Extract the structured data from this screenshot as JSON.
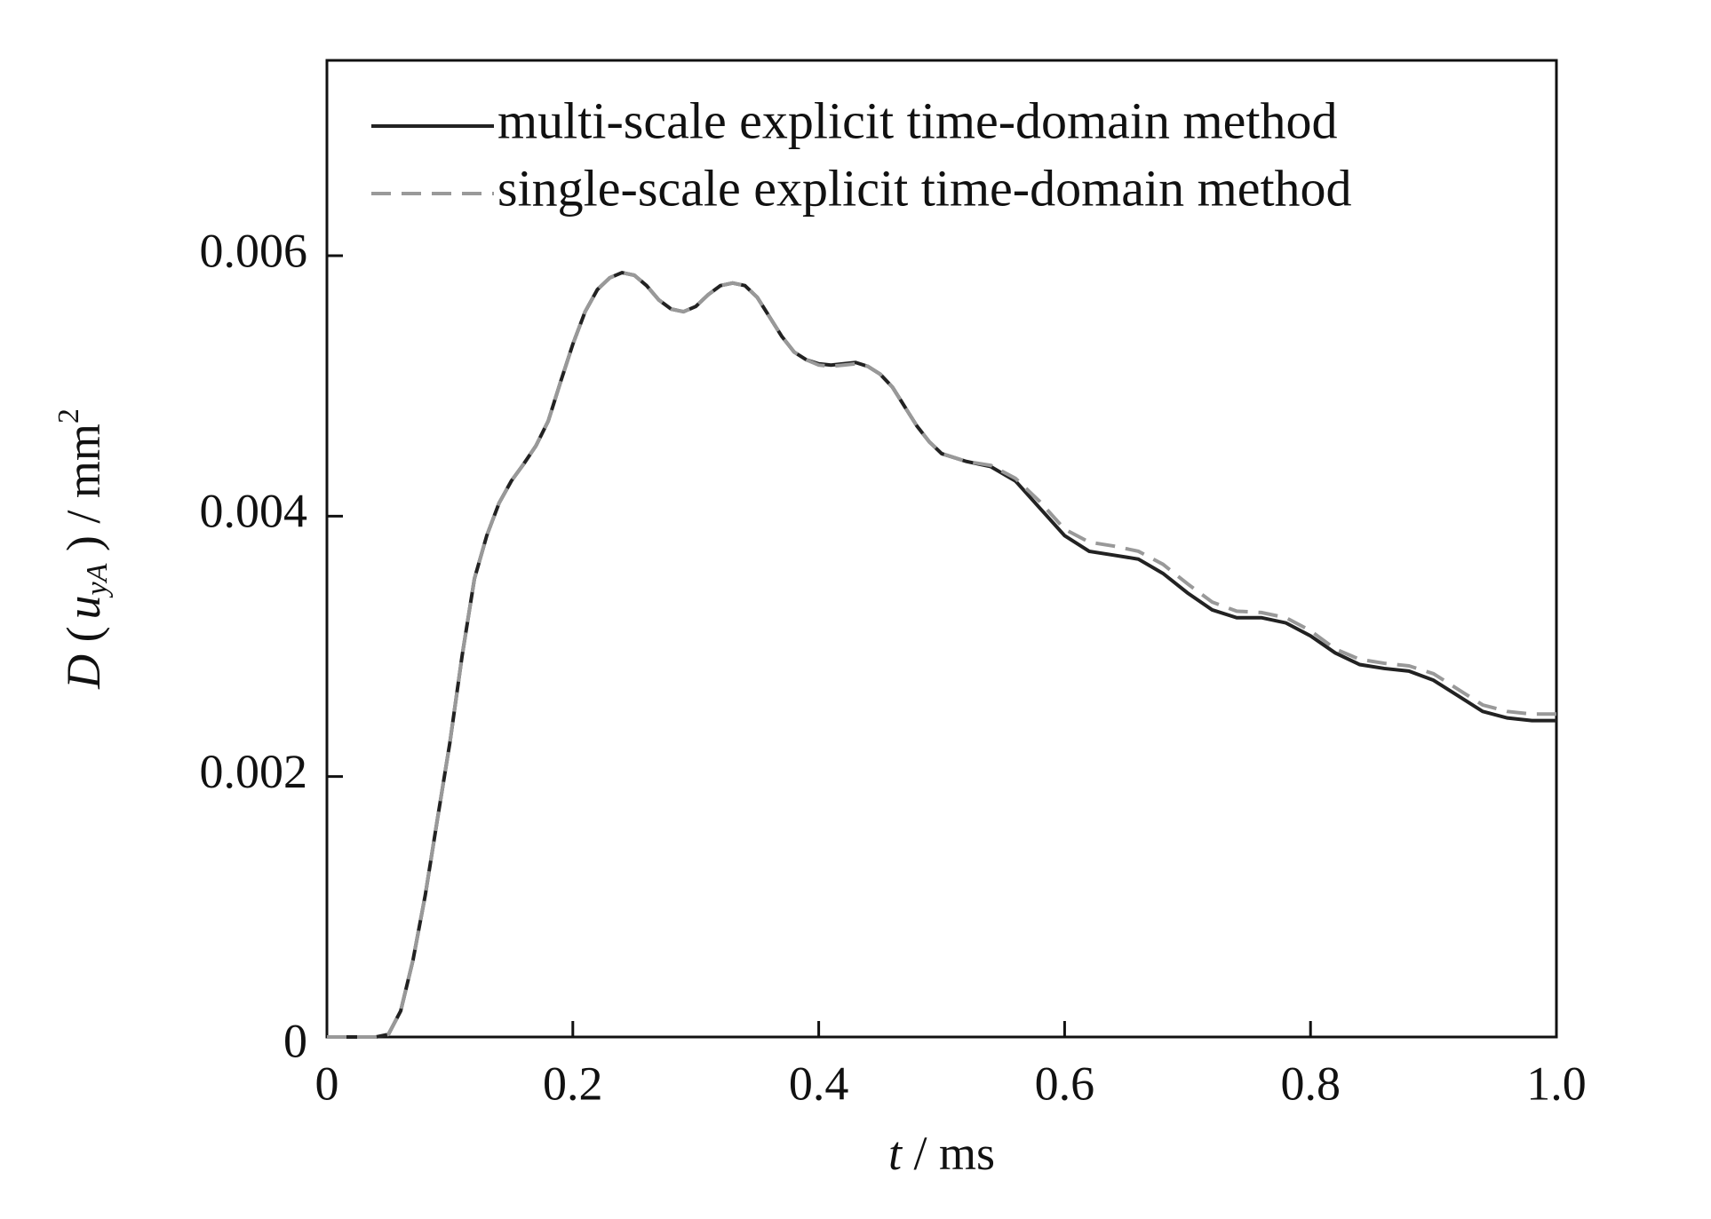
{
  "chart_data": {
    "type": "line",
    "x_label_parts": [
      "t",
      " / ms"
    ],
    "y_label_parts": [
      "D",
      " (",
      "u",
      "yA",
      " ) / mm",
      "2"
    ],
    "x": [
      0,
      0.02,
      0.04,
      0.05,
      0.06,
      0.07,
      0.08,
      0.09,
      0.1,
      0.11,
      0.12,
      0.13,
      0.14,
      0.15,
      0.16,
      0.17,
      0.18,
      0.19,
      0.2,
      0.21,
      0.22,
      0.23,
      0.24,
      0.25,
      0.26,
      0.27,
      0.28,
      0.29,
      0.3,
      0.31,
      0.32,
      0.33,
      0.34,
      0.35,
      0.36,
      0.37,
      0.38,
      0.39,
      0.4,
      0.41,
      0.42,
      0.43,
      0.44,
      0.45,
      0.46,
      0.47,
      0.48,
      0.49,
      0.5,
      0.52,
      0.54,
      0.56,
      0.58,
      0.6,
      0.62,
      0.64,
      0.66,
      0.68,
      0.7,
      0.72,
      0.74,
      0.76,
      0.78,
      0.8,
      0.82,
      0.84,
      0.86,
      0.88,
      0.9,
      0.92,
      0.94,
      0.96,
      0.98,
      1.0
    ],
    "series": [
      {
        "name": "multi-scale explicit time-domain method",
        "color": "#222222",
        "dash": "solid",
        "values": [
          0,
          0,
          0,
          2e-05,
          0.0002,
          0.00059,
          0.00109,
          0.00168,
          0.00226,
          0.00293,
          0.00352,
          0.00385,
          0.0041,
          0.00427,
          0.0044,
          0.00454,
          0.00473,
          0.00503,
          0.00532,
          0.00557,
          0.00574,
          0.00583,
          0.00587,
          0.00585,
          0.00577,
          0.00566,
          0.00559,
          0.00557,
          0.00561,
          0.0057,
          0.00577,
          0.00579,
          0.00577,
          0.00568,
          0.00553,
          0.00538,
          0.00526,
          0.0052,
          0.00517,
          0.00516,
          0.00517,
          0.00518,
          0.00515,
          0.00509,
          0.00499,
          0.00484,
          0.00469,
          0.00457,
          0.00448,
          0.00442,
          0.00438,
          0.00427,
          0.00406,
          0.00385,
          0.00373,
          0.0037,
          0.00367,
          0.00356,
          0.00341,
          0.00328,
          0.00322,
          0.00322,
          0.00318,
          0.00308,
          0.00295,
          0.00286,
          0.00283,
          0.00281,
          0.00274,
          0.00262,
          0.0025,
          0.00245,
          0.00243,
          0.00243
        ]
      },
      {
        "name": "single-scale explicit time-domain method",
        "color": "#999999",
        "dash": "dashed",
        "values": [
          0,
          0,
          0,
          2e-05,
          0.0002,
          0.00059,
          0.00109,
          0.00168,
          0.00226,
          0.00293,
          0.00352,
          0.00385,
          0.0041,
          0.00427,
          0.0044,
          0.00454,
          0.00473,
          0.00503,
          0.00532,
          0.00557,
          0.00574,
          0.00583,
          0.00587,
          0.00585,
          0.00577,
          0.00566,
          0.00559,
          0.00557,
          0.00561,
          0.0057,
          0.00577,
          0.00579,
          0.00577,
          0.00568,
          0.00553,
          0.00538,
          0.00526,
          0.0052,
          0.00516,
          0.00515,
          0.00516,
          0.00517,
          0.00515,
          0.00509,
          0.00499,
          0.00484,
          0.00469,
          0.00457,
          0.00448,
          0.00442,
          0.00439,
          0.00429,
          0.00411,
          0.0039,
          0.0038,
          0.00377,
          0.00373,
          0.00363,
          0.00348,
          0.00334,
          0.00327,
          0.00326,
          0.00322,
          0.00312,
          0.00298,
          0.0029,
          0.00287,
          0.00285,
          0.00279,
          0.00267,
          0.00255,
          0.0025,
          0.00248,
          0.00248
        ]
      }
    ],
    "xlim": [
      0,
      1
    ],
    "ylim": [
      0,
      0.0075
    ],
    "xticks": [
      0,
      0.2,
      0.4,
      0.6,
      0.8,
      {
        "value": 1,
        "label": "1.0"
      }
    ],
    "yticks": [
      0,
      0.002,
      0.004,
      0.006
    ],
    "grid": false,
    "legend": "upper-left"
  }
}
